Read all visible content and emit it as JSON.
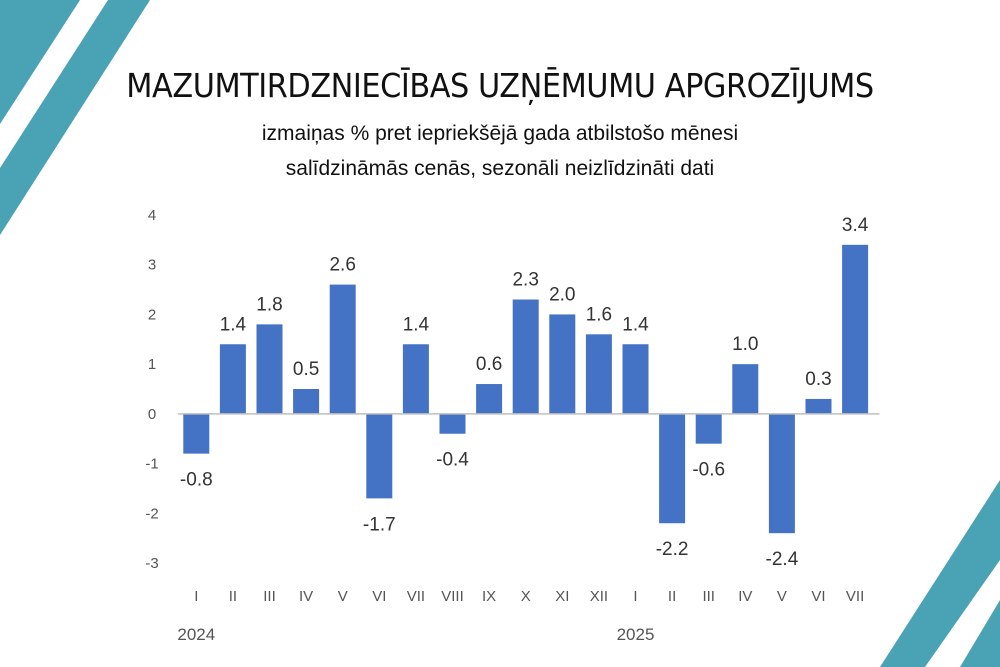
{
  "title": "MAZUMTIRDZNIECĪBAS UZŅĒMUMU APGROZĪJUMS",
  "subtitle_line1": "izmaiņas % pret iepriekšējā gada atbilstošo mēnesi",
  "subtitle_line2": "salīdzināmās cenās, sezonāli neizlīdzināti dati",
  "colors": {
    "bar": "#4472c4",
    "decoration": "#4aa3b5",
    "axis": "#bfbfbf"
  },
  "chart_data": {
    "type": "bar",
    "categories": [
      "I",
      "II",
      "III",
      "IV",
      "V",
      "VI",
      "VII",
      "VIII",
      "IX",
      "X",
      "XI",
      "XII",
      "I",
      "II",
      "III",
      "IV",
      "V",
      "VI",
      "VII"
    ],
    "values": [
      -0.8,
      1.4,
      1.8,
      0.5,
      2.6,
      -1.7,
      1.4,
      -0.4,
      0.6,
      2.3,
      2.0,
      1.6,
      1.4,
      -2.2,
      -0.6,
      1.0,
      -2.4,
      0.3,
      3.4
    ],
    "data_labels": [
      "-0.8",
      "1.4",
      "1.8",
      "0.5",
      "2.6",
      "-1.7",
      "1.4",
      "-0.4",
      "0.6",
      "2.3",
      "2.0",
      "1.6",
      "1.4",
      "-2.2",
      "-0.6",
      "1.0",
      "-2.4",
      "0.3",
      "3.4"
    ],
    "year_labels": [
      {
        "text": "2024",
        "start_index": 0
      },
      {
        "text": "2025",
        "start_index": 12
      }
    ],
    "yticks": [
      "4",
      "3",
      "2",
      "1",
      "0",
      "-1",
      "-2",
      "-3"
    ],
    "ylim": [
      -3,
      4
    ],
    "grid": false,
    "legend": "none"
  }
}
